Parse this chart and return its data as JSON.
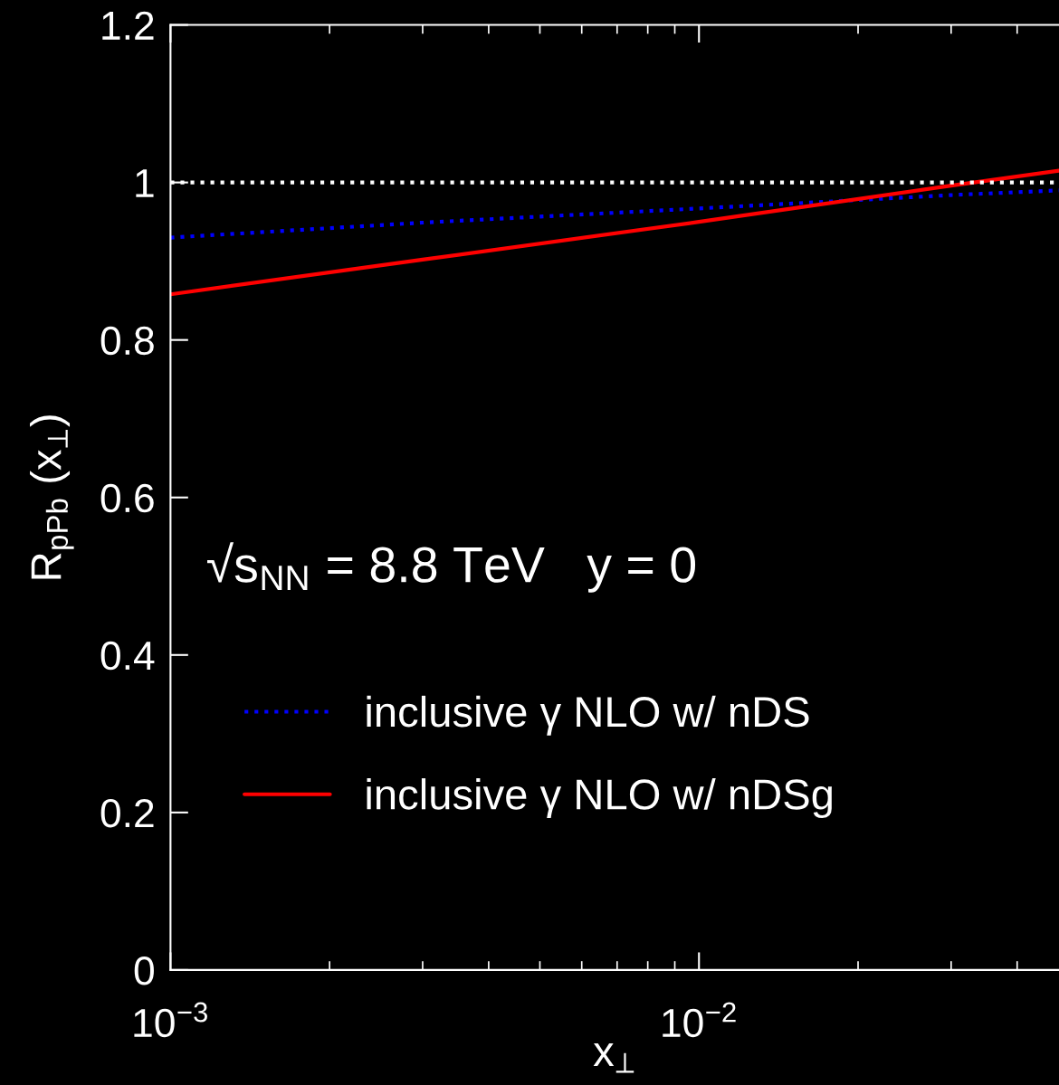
{
  "chart_data": {
    "type": "line",
    "xlabel": "x$_{⊥}$",
    "ylabel": "R$_{pPb}$ (x$_{⊥}$)",
    "log": "x",
    "xlim": [
      0.001,
      0.048
    ],
    "ylim": [
      0,
      1.2
    ],
    "xticks": [
      {
        "value": 0.001,
        "label": "10$^{−3}$"
      },
      {
        "value": 0.01,
        "label": "10$^{−2}$"
      }
    ],
    "yticks": [
      0,
      0.2,
      0.4,
      0.6,
      0.8,
      1,
      1.2
    ],
    "series": [
      {
        "name": "inclusive γ NLO w/ nDS",
        "color": "#0000ff",
        "line_style": "dotted",
        "x": [
          0.001,
          0.003,
          0.01,
          0.03,
          0.048
        ],
        "values": [
          0.93,
          0.949,
          0.967,
          0.984,
          0.99
        ]
      },
      {
        "name": "inclusive γ NLO w/ nDSg",
        "color": "#ff0000",
        "line_style": "solid",
        "x": [
          0.001,
          0.003,
          0.01,
          0.03,
          0.048
        ],
        "values": [
          0.858,
          0.902,
          0.95,
          0.996,
          1.015
        ]
      }
    ],
    "ref_lines": [
      {
        "axis": "y",
        "value": 1,
        "color": "#ffffff",
        "line_style": "dotted"
      }
    ],
    "annotations": [
      "√s$_{NN}$ = 8.8 TeV   y = 0"
    ],
    "legend": "bottom left",
    "grid": false
  }
}
